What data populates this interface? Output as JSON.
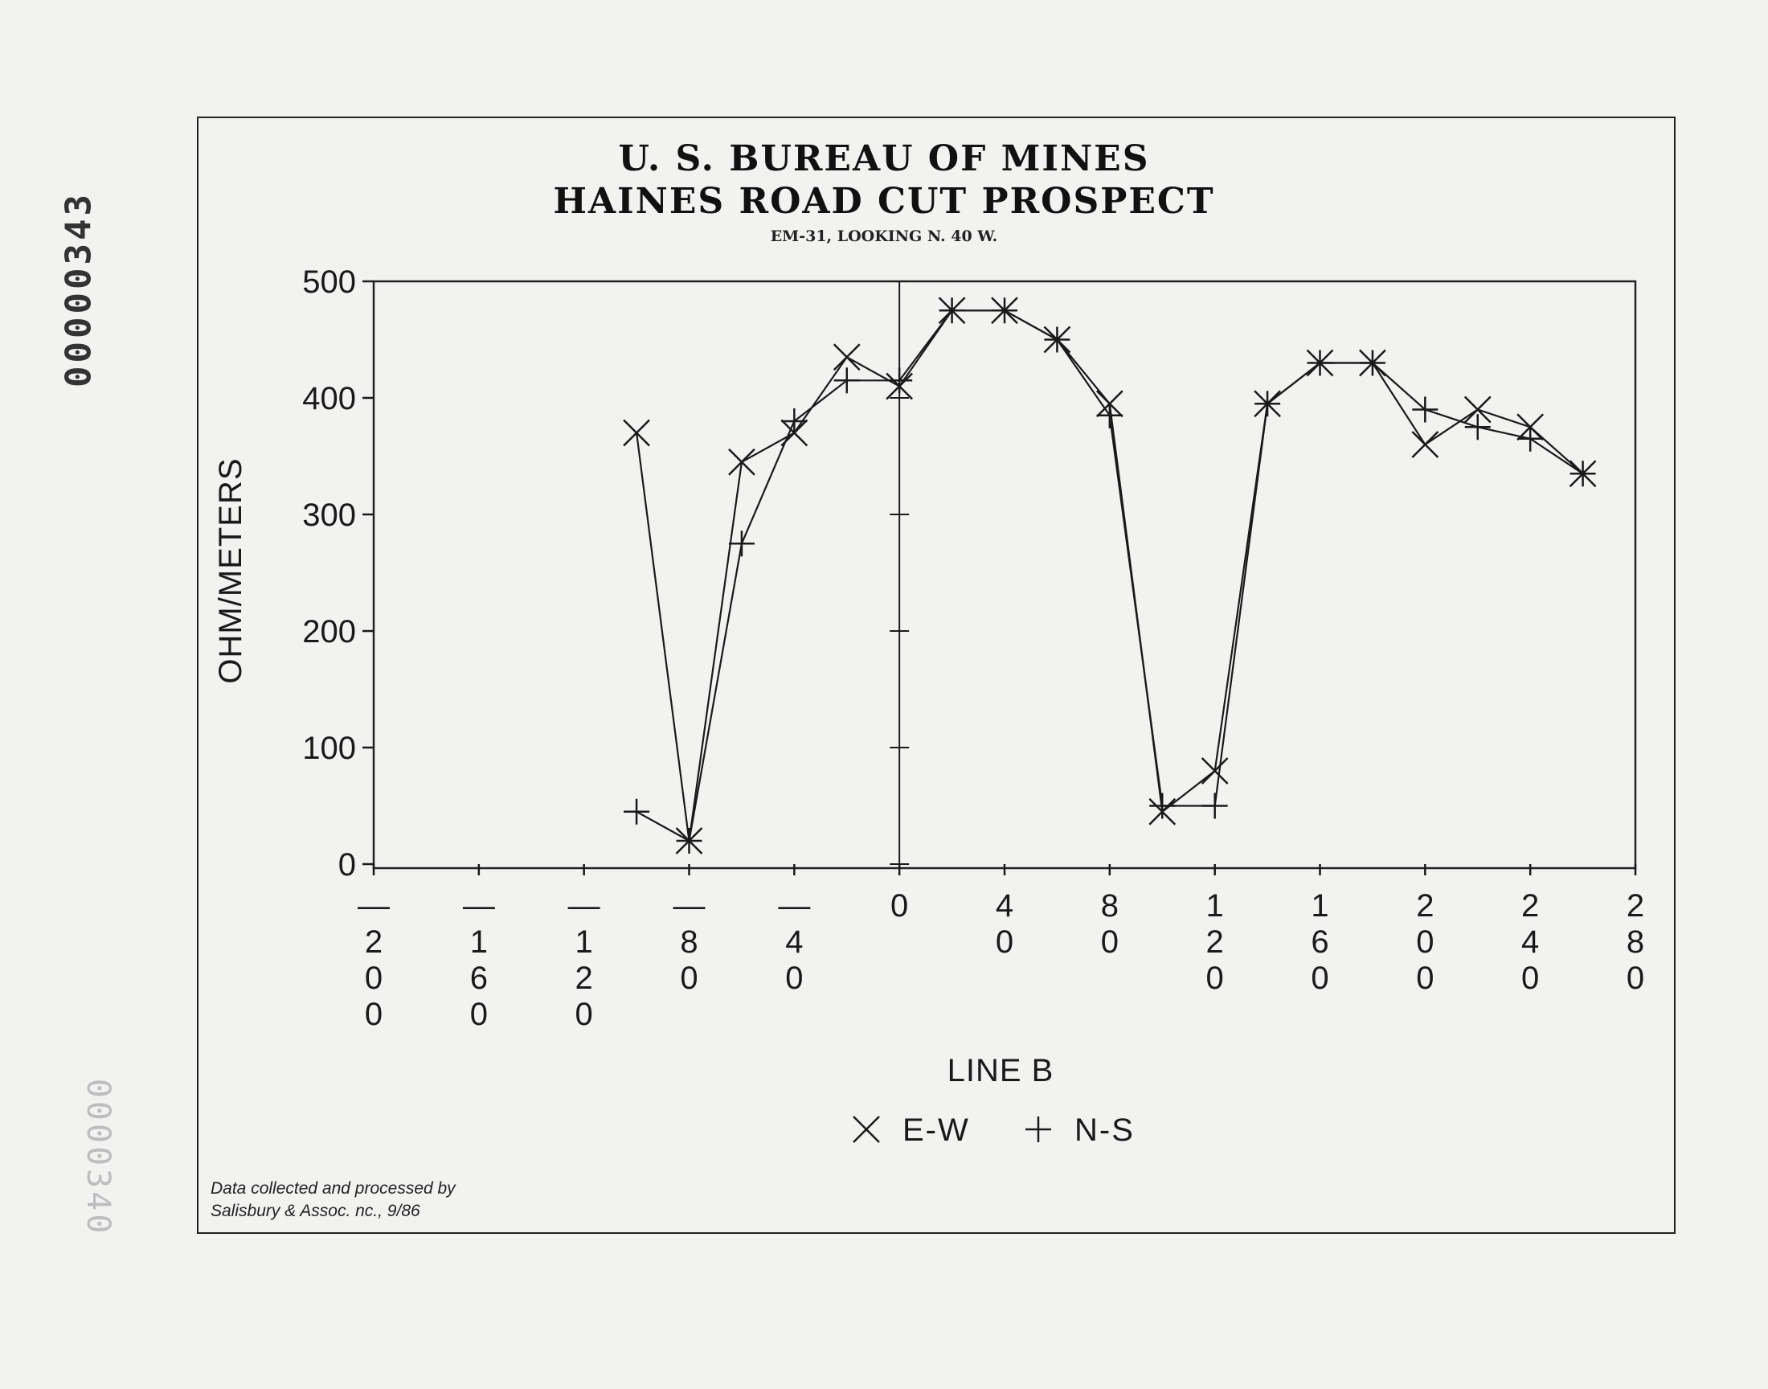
{
  "document": {
    "id_stamp": "00000343",
    "id_stamp_faint": "0000340",
    "credit_line1": "Data collected and processed by",
    "credit_line2": "Salisbury & Assoc. nc., 9/86"
  },
  "chart_data": {
    "type": "line",
    "title_line1": "U. S. BUREAU OF MINES",
    "title_line2": "HAINES ROAD CUT PROSPECT",
    "subtitle": "EM-31, LOOKING N. 40 W.",
    "xlabel": "LINE B",
    "ylabel": "OHM/METERS",
    "xlim": [
      -200,
      280
    ],
    "ylim": [
      0,
      500
    ],
    "x_ticks": [
      -200,
      -160,
      -120,
      -80,
      -40,
      0,
      40,
      80,
      120,
      160,
      200,
      240,
      280
    ],
    "y_ticks": [
      0,
      100,
      200,
      300,
      400,
      500
    ],
    "grid": false,
    "legend_position": "bottom-center",
    "series": [
      {
        "name": "E-W",
        "marker": "x",
        "x": [
          -100,
          -80,
          -60,
          -40,
          -20,
          0,
          20,
          40,
          60,
          80,
          100,
          120,
          140,
          160,
          180,
          200,
          220,
          240,
          260
        ],
        "y": [
          370,
          20,
          345,
          370,
          435,
          410,
          475,
          475,
          450,
          395,
          45,
          80,
          395,
          430,
          430,
          360,
          390,
          375,
          335
        ]
      },
      {
        "name": "N-S",
        "marker": "+",
        "x": [
          -100,
          -80,
          -60,
          -40,
          -20,
          0,
          20,
          40,
          60,
          80,
          100,
          120,
          140,
          160,
          180,
          200,
          220,
          240,
          260
        ],
        "y": [
          45,
          20,
          275,
          380,
          415,
          415,
          475,
          475,
          450,
          385,
          50,
          50,
          395,
          430,
          430,
          390,
          375,
          365,
          335
        ]
      }
    ]
  }
}
